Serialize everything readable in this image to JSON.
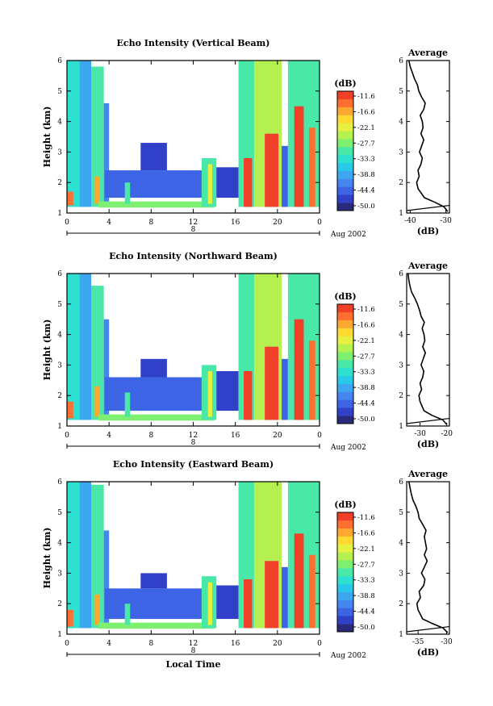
{
  "colors": {
    "scale": [
      "#2a2a7a",
      "#3040c8",
      "#3c64e4",
      "#4686f0",
      "#3ca6f0",
      "#28c8e8",
      "#2ee0d0",
      "#4ae8a8",
      "#7ef070",
      "#b4f050",
      "#e6f040",
      "#ffd830",
      "#ffa830",
      "#ff7030",
      "#f04028"
    ],
    "axis": "#000000"
  },
  "chart_data": [
    {
      "type": "heatmap",
      "title": "Echo Intensity (Vertical Beam)",
      "ylabel": "Height (km)",
      "xlabel": "",
      "x_ticks": [
        "0",
        "4",
        "8",
        "12",
        "16",
        "20",
        "0"
      ],
      "y_ticks": [
        "1",
        "2",
        "3",
        "4",
        "5",
        "6"
      ],
      "xlim": [
        0,
        24
      ],
      "ylim": [
        1,
        6
      ],
      "date_bar": {
        "mid_label": "8",
        "date_label": "Aug 2002"
      },
      "colorbar": {
        "unit": "(dB)",
        "ticks": [
          "-11.6",
          "-16.6",
          "-22.1",
          "-27.7",
          "-33.3",
          "-38.8",
          "-44.4",
          "-50.0"
        ]
      },
      "profile": {
        "title": "Average",
        "xlabel": "(dB)",
        "x_ticks": [
          "-40",
          "-30"
        ],
        "xlim": [
          -41,
          -29
        ],
        "y_ticks": [
          "1",
          "2",
          "3",
          "4",
          "5",
          "6"
        ],
        "heights": [
          1.05,
          1.2,
          1.35,
          1.5,
          1.8,
          2.0,
          2.2,
          2.4,
          2.6,
          2.8,
          3.0,
          3.2,
          3.4,
          3.6,
          3.8,
          4.0,
          4.2,
          4.4,
          4.6,
          4.8,
          5.0,
          5.2,
          5.4,
          5.6,
          5.8,
          6.0
        ],
        "values": [
          -29.5,
          -30.5,
          -33.0,
          -36.0,
          -37.8,
          -38.2,
          -37.5,
          -37.8,
          -37.0,
          -36.6,
          -37.4,
          -36.8,
          -36.2,
          -37.0,
          -36.4,
          -36.6,
          -37.2,
          -36.2,
          -35.8,
          -36.8,
          -37.6,
          -38.0,
          -38.8,
          -39.4,
          -40.0,
          -40.4
        ]
      },
      "regions": [
        {
          "t0": 0.0,
          "t1": 1.3,
          "h0": 1.2,
          "h1": 6.0,
          "v": -33
        },
        {
          "t0": 0.05,
          "t1": 0.6,
          "h0": 1.25,
          "h1": 1.7,
          "v": -15
        },
        {
          "t0": 1.2,
          "t1": 2.3,
          "h0": 1.2,
          "h1": 6.0,
          "v": -38
        },
        {
          "t0": 2.3,
          "t1": 3.5,
          "h0": 1.2,
          "h1": 5.8,
          "v": -31
        },
        {
          "t0": 2.6,
          "t1": 3.1,
          "h0": 1.3,
          "h1": 2.2,
          "v": -17
        },
        {
          "t0": 3.5,
          "t1": 4.0,
          "h0": 1.2,
          "h1": 4.6,
          "v": -41
        },
        {
          "t0": 3.6,
          "t1": 12.8,
          "h0": 1.5,
          "h1": 2.4,
          "v": -44
        },
        {
          "t0": 3.0,
          "t1": 14.0,
          "h0": 1.18,
          "h1": 1.38,
          "v": -27
        },
        {
          "t0": 5.5,
          "t1": 6.0,
          "h0": 1.3,
          "h1": 2.0,
          "v": -30
        },
        {
          "t0": 7.0,
          "t1": 9.5,
          "h0": 2.4,
          "h1": 3.3,
          "v": -45
        },
        {
          "t0": 12.8,
          "t1": 14.2,
          "h0": 1.2,
          "h1": 2.8,
          "v": -30
        },
        {
          "t0": 13.4,
          "t1": 13.8,
          "h0": 1.3,
          "h1": 2.6,
          "v": -22
        },
        {
          "t0": 14.2,
          "t1": 16.3,
          "h0": 1.5,
          "h1": 2.5,
          "v": -45
        },
        {
          "t0": 16.3,
          "t1": 17.8,
          "h0": 1.2,
          "h1": 6.0,
          "v": -30
        },
        {
          "t0": 16.8,
          "t1": 17.6,
          "h0": 1.2,
          "h1": 2.8,
          "v": -12
        },
        {
          "t0": 17.8,
          "t1": 20.4,
          "h0": 1.2,
          "h1": 6.0,
          "v": -26
        },
        {
          "t0": 18.8,
          "t1": 20.1,
          "h0": 1.2,
          "h1": 3.6,
          "v": -11
        },
        {
          "t0": 20.4,
          "t1": 21.0,
          "h0": 1.2,
          "h1": 3.2,
          "v": -43
        },
        {
          "t0": 21.0,
          "t1": 24.0,
          "h0": 1.2,
          "h1": 6.0,
          "v": -30
        },
        {
          "t0": 21.6,
          "t1": 22.5,
          "h0": 1.2,
          "h1": 4.5,
          "v": -12
        },
        {
          "t0": 23.0,
          "t1": 23.6,
          "h0": 1.2,
          "h1": 3.8,
          "v": -14
        }
      ]
    },
    {
      "type": "heatmap",
      "title": "Echo Intensity (Northward Beam)",
      "ylabel": "Height (km)",
      "xlabel": "",
      "x_ticks": [
        "0",
        "4",
        "8",
        "12",
        "16",
        "20",
        "0"
      ],
      "y_ticks": [
        "1",
        "2",
        "3",
        "4",
        "5",
        "6"
      ],
      "xlim": [
        0,
        24
      ],
      "ylim": [
        1,
        6
      ],
      "date_bar": {
        "mid_label": "8",
        "date_label": "Aug 2002"
      },
      "colorbar": {
        "unit": "(dB)",
        "ticks": [
          "-11.6",
          "-16.6",
          "-22.1",
          "-27.7",
          "-33.3",
          "-38.8",
          "-44.4",
          "-50.0"
        ]
      },
      "profile": {
        "title": "Average",
        "xlabel": "(dB)",
        "x_ticks": [
          "-30",
          "-20"
        ],
        "xlim": [
          -35,
          -19
        ],
        "y_ticks": [
          "1",
          "2",
          "3",
          "4",
          "5",
          "6"
        ],
        "heights": [
          1.05,
          1.2,
          1.35,
          1.5,
          1.8,
          2.0,
          2.2,
          2.4,
          2.6,
          2.8,
          3.0,
          3.2,
          3.4,
          3.6,
          3.8,
          4.0,
          4.2,
          4.4,
          4.6,
          4.8,
          5.0,
          5.2,
          5.4,
          5.6,
          5.8,
          6.0
        ],
        "values": [
          -20.0,
          -21.5,
          -25.5,
          -28.5,
          -30.0,
          -30.4,
          -29.4,
          -30.0,
          -29.0,
          -28.6,
          -29.6,
          -28.8,
          -28.0,
          -29.0,
          -28.2,
          -28.5,
          -29.2,
          -28.4,
          -29.6,
          -30.2,
          -31.0,
          -32.0,
          -33.2,
          -33.8,
          -34.2,
          -34.5
        ]
      },
      "regions": [
        {
          "t0": 0.0,
          "t1": 1.3,
          "h0": 1.2,
          "h1": 6.0,
          "v": -33
        },
        {
          "t0": 0.05,
          "t1": 0.6,
          "h0": 1.25,
          "h1": 1.8,
          "v": -15
        },
        {
          "t0": 1.2,
          "t1": 2.3,
          "h0": 1.2,
          "h1": 6.0,
          "v": -38
        },
        {
          "t0": 2.3,
          "t1": 3.5,
          "h0": 1.2,
          "h1": 5.6,
          "v": -31
        },
        {
          "t0": 2.6,
          "t1": 3.1,
          "h0": 1.3,
          "h1": 2.3,
          "v": -17
        },
        {
          "t0": 3.5,
          "t1": 4.0,
          "h0": 1.2,
          "h1": 4.5,
          "v": -41
        },
        {
          "t0": 3.6,
          "t1": 12.8,
          "h0": 1.5,
          "h1": 2.6,
          "v": -44
        },
        {
          "t0": 3.0,
          "t1": 14.0,
          "h0": 1.18,
          "h1": 1.38,
          "v": -27
        },
        {
          "t0": 5.5,
          "t1": 6.0,
          "h0": 1.3,
          "h1": 2.1,
          "v": -30
        },
        {
          "t0": 7.0,
          "t1": 9.5,
          "h0": 2.6,
          "h1": 3.2,
          "v": -45
        },
        {
          "t0": 12.8,
          "t1": 14.2,
          "h0": 1.2,
          "h1": 3.0,
          "v": -30
        },
        {
          "t0": 13.4,
          "t1": 13.8,
          "h0": 1.3,
          "h1": 2.8,
          "v": -22
        },
        {
          "t0": 14.2,
          "t1": 16.3,
          "h0": 1.5,
          "h1": 2.8,
          "v": -45
        },
        {
          "t0": 16.3,
          "t1": 17.8,
          "h0": 1.2,
          "h1": 6.0,
          "v": -30
        },
        {
          "t0": 16.8,
          "t1": 17.6,
          "h0": 1.2,
          "h1": 2.8,
          "v": -12
        },
        {
          "t0": 17.8,
          "t1": 20.4,
          "h0": 1.2,
          "h1": 6.0,
          "v": -26
        },
        {
          "t0": 18.8,
          "t1": 20.1,
          "h0": 1.2,
          "h1": 3.6,
          "v": -11
        },
        {
          "t0": 20.4,
          "t1": 21.0,
          "h0": 1.2,
          "h1": 3.2,
          "v": -43
        },
        {
          "t0": 21.0,
          "t1": 24.0,
          "h0": 1.2,
          "h1": 6.0,
          "v": -30
        },
        {
          "t0": 21.6,
          "t1": 22.5,
          "h0": 1.2,
          "h1": 4.5,
          "v": -12
        },
        {
          "t0": 23.0,
          "t1": 23.6,
          "h0": 1.2,
          "h1": 3.8,
          "v": -14
        }
      ]
    },
    {
      "type": "heatmap",
      "title": "Echo Intensity (Eastward Beam)",
      "ylabel": "Height (km)",
      "xlabel": "Local Time",
      "x_ticks": [
        "0",
        "4",
        "8",
        "12",
        "16",
        "20",
        "0"
      ],
      "y_ticks": [
        "1",
        "2",
        "3",
        "4",
        "5",
        "6"
      ],
      "xlim": [
        0,
        24
      ],
      "ylim": [
        1,
        6
      ],
      "date_bar": {
        "mid_label": "8",
        "date_label": "Aug 2002"
      },
      "colorbar": {
        "unit": "(dB)",
        "ticks": [
          "-11.6",
          "-16.6",
          "-22.1",
          "-27.7",
          "-33.3",
          "-38.8",
          "-44.4",
          "-50.0"
        ]
      },
      "profile": {
        "title": "Average",
        "xlabel": "(dB)",
        "x_ticks": [
          "-35",
          "-30"
        ],
        "xlim": [
          -37,
          -29.5
        ],
        "y_ticks": [
          "1",
          "2",
          "3",
          "4",
          "5",
          "6"
        ],
        "heights": [
          1.05,
          1.2,
          1.35,
          1.5,
          1.8,
          2.0,
          2.2,
          2.4,
          2.6,
          2.8,
          3.0,
          3.2,
          3.4,
          3.6,
          3.8,
          4.0,
          4.2,
          4.4,
          4.6,
          4.8,
          5.0,
          5.2,
          5.4,
          5.6,
          5.8,
          6.0
        ],
        "values": [
          -29.8,
          -30.6,
          -32.5,
          -34.2,
          -35.0,
          -35.2,
          -34.6,
          -34.8,
          -34.0,
          -33.8,
          -34.4,
          -33.9,
          -33.4,
          -33.9,
          -33.5,
          -33.7,
          -33.9,
          -33.6,
          -34.2,
          -34.8,
          -35.0,
          -35.4,
          -35.9,
          -36.2,
          -36.4,
          -36.6
        ]
      },
      "regions": [
        {
          "t0": 0.0,
          "t1": 1.3,
          "h0": 1.2,
          "h1": 6.0,
          "v": -33
        },
        {
          "t0": 0.05,
          "t1": 0.6,
          "h0": 1.25,
          "h1": 1.8,
          "v": -15
        },
        {
          "t0": 1.2,
          "t1": 2.3,
          "h0": 1.2,
          "h1": 6.0,
          "v": -38
        },
        {
          "t0": 2.3,
          "t1": 3.5,
          "h0": 1.2,
          "h1": 5.9,
          "v": -31
        },
        {
          "t0": 2.6,
          "t1": 3.1,
          "h0": 1.3,
          "h1": 2.3,
          "v": -17
        },
        {
          "t0": 3.5,
          "t1": 4.0,
          "h0": 1.2,
          "h1": 4.4,
          "v": -41
        },
        {
          "t0": 3.6,
          "t1": 12.8,
          "h0": 1.5,
          "h1": 2.5,
          "v": -44
        },
        {
          "t0": 3.0,
          "t1": 14.0,
          "h0": 1.18,
          "h1": 1.38,
          "v": -27
        },
        {
          "t0": 5.5,
          "t1": 6.0,
          "h0": 1.3,
          "h1": 2.0,
          "v": -30
        },
        {
          "t0": 7.0,
          "t1": 9.5,
          "h0": 2.5,
          "h1": 3.0,
          "v": -45
        },
        {
          "t0": 12.8,
          "t1": 14.2,
          "h0": 1.2,
          "h1": 2.9,
          "v": -30
        },
        {
          "t0": 13.4,
          "t1": 13.8,
          "h0": 1.3,
          "h1": 2.7,
          "v": -22
        },
        {
          "t0": 14.2,
          "t1": 16.3,
          "h0": 1.5,
          "h1": 2.6,
          "v": -45
        },
        {
          "t0": 16.3,
          "t1": 17.8,
          "h0": 1.2,
          "h1": 6.0,
          "v": -30
        },
        {
          "t0": 16.8,
          "t1": 17.6,
          "h0": 1.2,
          "h1": 2.8,
          "v": -12
        },
        {
          "t0": 17.8,
          "t1": 20.4,
          "h0": 1.2,
          "h1": 6.0,
          "v": -26
        },
        {
          "t0": 18.8,
          "t1": 20.1,
          "h0": 1.2,
          "h1": 3.4,
          "v": -11
        },
        {
          "t0": 20.4,
          "t1": 21.0,
          "h0": 1.2,
          "h1": 3.2,
          "v": -43
        },
        {
          "t0": 21.0,
          "t1": 24.0,
          "h0": 1.2,
          "h1": 6.0,
          "v": -30
        },
        {
          "t0": 21.6,
          "t1": 22.5,
          "h0": 1.2,
          "h1": 4.3,
          "v": -12
        },
        {
          "t0": 23.0,
          "t1": 23.6,
          "h0": 1.2,
          "h1": 3.6,
          "v": -14
        }
      ]
    }
  ]
}
